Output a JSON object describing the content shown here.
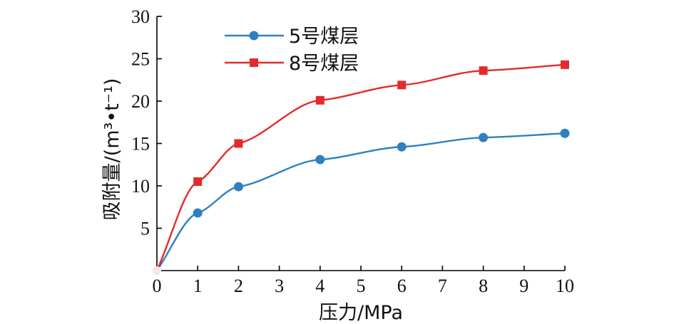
{
  "chart_data": {
    "type": "line",
    "xlabel": "压力/MPa",
    "ylabel": "吸附量/(m³•t⁻¹)",
    "xlim": [
      0,
      10
    ],
    "ylim": [
      0,
      30
    ],
    "x_ticks": [
      0,
      1,
      2,
      3,
      4,
      5,
      6,
      7,
      8,
      9,
      10
    ],
    "y_ticks": [
      5,
      10,
      15,
      20,
      25,
      30
    ],
    "grid": false,
    "legend_position": "top-left",
    "series": [
      {
        "name": "5号煤层",
        "color": "#2f80c0",
        "marker": "circle",
        "x": [
          0,
          1,
          2,
          4,
          6,
          8,
          10
        ],
        "y": [
          0,
          6.8,
          9.9,
          13.1,
          14.6,
          15.7,
          16.2
        ]
      },
      {
        "name": "8号煤层",
        "color": "#e32b2b",
        "marker": "square",
        "x": [
          0,
          1,
          2,
          4,
          6,
          8,
          10
        ],
        "y": [
          0,
          10.5,
          15.0,
          20.1,
          21.9,
          23.6,
          24.3
        ]
      }
    ]
  }
}
